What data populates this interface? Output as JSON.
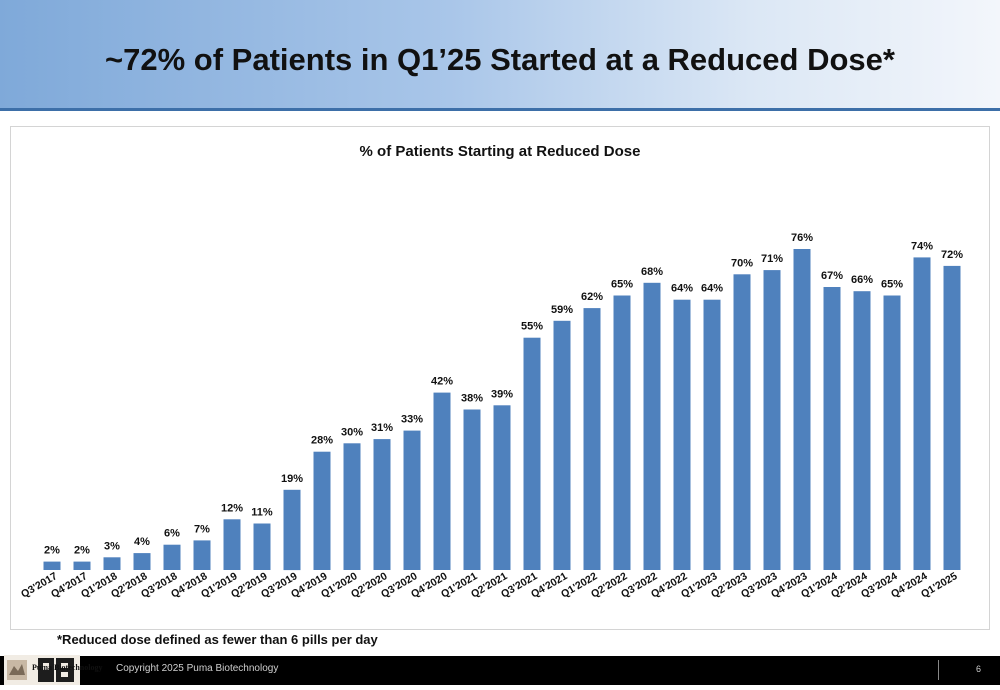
{
  "slide": {
    "title": "~72% of Patients in Q1’25 Started at a Reduced Dose*",
    "footnote": "*Reduced dose defined as fewer than 6 pills per day",
    "copyright": "Copyright 2025 Puma Biotechnology",
    "page_number": "6",
    "logo_text": "Puma Biotechnology"
  },
  "colors": {
    "bar": "#4f81bd",
    "header_rule": "#3d6fa8"
  },
  "chart_data": {
    "type": "bar",
    "title": "% of Patients Starting at Reduced Dose",
    "xlabel": "",
    "ylabel": "",
    "ylim": [
      0,
      80
    ],
    "grid": false,
    "legend": "none",
    "categories": [
      "Q3'2017",
      "Q4'2017",
      "Q1'2018",
      "Q2'2018",
      "Q3'2018",
      "Q4'2018",
      "Q1'2019",
      "Q2'2019",
      "Q3'2019",
      "Q4'2019",
      "Q1'2020",
      "Q2'2020",
      "Q3'2020",
      "Q4'2020",
      "Q1'2021",
      "Q2'2021",
      "Q3'2021",
      "Q4'2021",
      "Q1'2022",
      "Q2'2022",
      "Q3'2022",
      "Q4'2022",
      "Q1'2023",
      "Q2'2023",
      "Q3'2023",
      "Q4'2023",
      "Q1'2024",
      "Q2'2024",
      "Q3'2024",
      "Q4'2024",
      "Q1'2025"
    ],
    "values": [
      2,
      2,
      3,
      4,
      6,
      7,
      12,
      11,
      19,
      28,
      30,
      31,
      33,
      42,
      38,
      39,
      55,
      59,
      62,
      65,
      68,
      64,
      64,
      70,
      71,
      76,
      67,
      66,
      65,
      74,
      72
    ],
    "labels": [
      "2%",
      "2%",
      "3%",
      "4%",
      "6%",
      "7%",
      "12%",
      "11%",
      "19%",
      "28%",
      "30%",
      "31%",
      "33%",
      "42%",
      "38%",
      "39%",
      "55%",
      "59%",
      "62%",
      "65%",
      "68%",
      "64%",
      "64%",
      "70%",
      "71%",
      "76%",
      "67%",
      "66%",
      "65%",
      "74%",
      "72%"
    ]
  }
}
